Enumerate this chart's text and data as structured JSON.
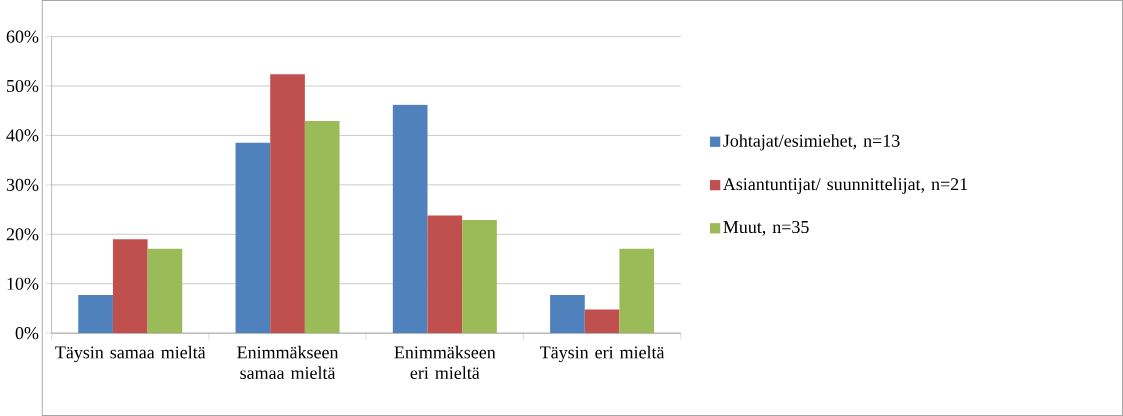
{
  "chart_data": {
    "type": "bar",
    "categories": [
      "Täysin samaa mieltä",
      "Enimmäkseen samaa mieltä",
      "Enimmäkseen eri mieltä",
      "Täysin eri mieltä"
    ],
    "series": [
      {
        "name": "Johtajat/esimiehet, n=13",
        "color": "#4f81bd",
        "values": [
          7.7,
          38.5,
          46.2,
          7.7
        ]
      },
      {
        "name": "Asiantuntijat/ suunnittelijat, n=21",
        "color": "#c0504d",
        "values": [
          19.0,
          52.4,
          23.8,
          4.8
        ]
      },
      {
        "name": "Muut, n=35",
        "color": "#9bbb59",
        "values": [
          17.1,
          42.9,
          22.9,
          17.1
        ]
      }
    ],
    "ylim": [
      0,
      60
    ],
    "yticks": [
      {
        "value": 0,
        "label": "0%"
      },
      {
        "value": 10,
        "label": "10%"
      },
      {
        "value": 20,
        "label": "20%"
      },
      {
        "value": 30,
        "label": "30%"
      },
      {
        "value": 40,
        "label": "40%"
      },
      {
        "value": 50,
        "label": "50%"
      },
      {
        "value": 60,
        "label": "60%"
      }
    ],
    "grid": "y",
    "legend": "right"
  }
}
